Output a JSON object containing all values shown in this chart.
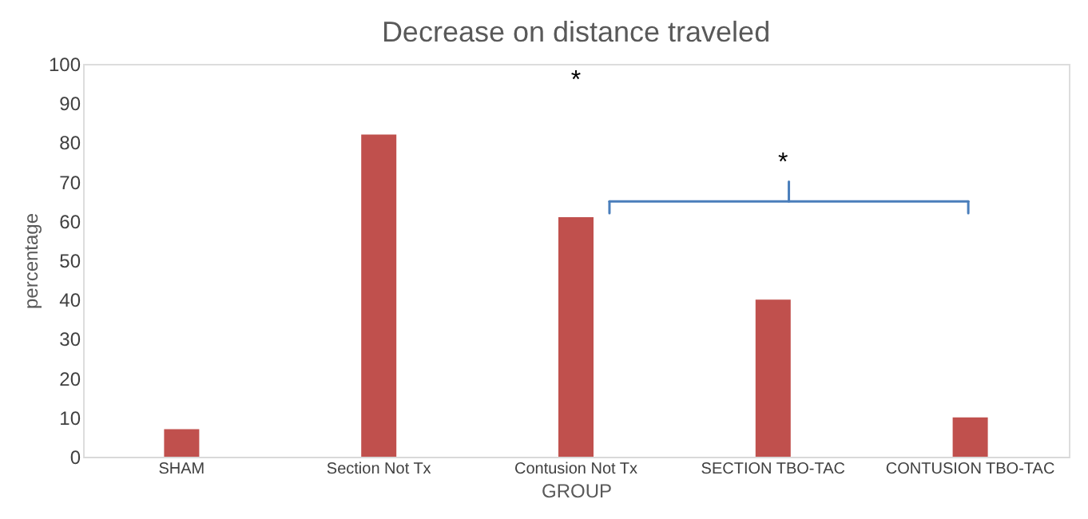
{
  "chart_data": {
    "type": "bar",
    "title": "Decrease on distance traveled",
    "xlabel": "GROUP",
    "ylabel": "percentage",
    "categories": [
      "SHAM",
      "Section Not Tx",
      "Contusion Not Tx",
      "SECTION TBO-TAC",
      "CONTUSION TBO-TAC"
    ],
    "values": [
      7,
      82,
      61,
      40,
      10
    ],
    "color": "#c0504d",
    "ylim": [
      0,
      100
    ],
    "yticks": [
      0,
      10,
      20,
      30,
      40,
      50,
      60,
      70,
      80,
      90,
      100
    ],
    "grid": false,
    "annotations": [
      "*",
      "*"
    ]
  }
}
